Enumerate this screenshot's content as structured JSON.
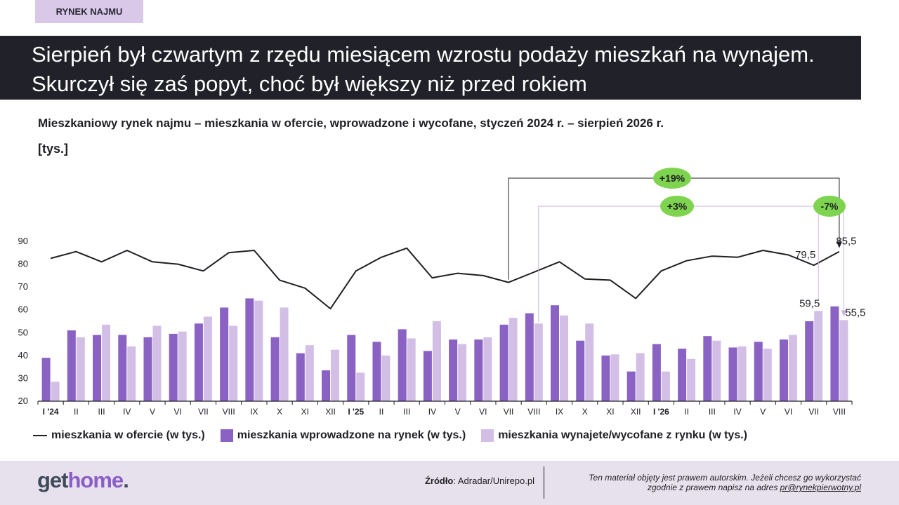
{
  "tag": "RYNEK NAJMU",
  "headline": "Sierpień był czwartym z rzędu miesiącem wzrostu podaży mieszkań na wynajem. Skurczył się zaś popyt, choć był większy niż przed rokiem",
  "subtitle": "Mieszkaniowy rynek najmu – mieszkania w ofercie, wprowadzone i wycofane, styczeń 2024 r. – sierpień 2026 r.",
  "unit": "[tys.]",
  "colors": {
    "line": "#1f1f24",
    "introduced": "#8a62c4",
    "withdrawn": "#d3bfe6",
    "badge": "#7ed44e",
    "connector_dark": "#1f1f24",
    "connector_light": "#c9b6de"
  },
  "chart_data": {
    "type": "bar",
    "categories": [
      "I '24",
      "II",
      "III",
      "IV",
      "V",
      "VI",
      "VII",
      "VIII",
      "IX",
      "X",
      "XI",
      "XII",
      "I '25",
      "II",
      "III",
      "IV",
      "V",
      "VI",
      "VII",
      "VIII",
      "IX",
      "X",
      "XI",
      "XII",
      "I '26",
      "II",
      "III",
      "IV",
      "V",
      "VI",
      "VII",
      "VIII"
    ],
    "bold_categories": [
      "I '24",
      "I '25",
      "I '26"
    ],
    "ylim": [
      20,
      90
    ],
    "yticks": [
      20,
      30,
      40,
      50,
      60,
      70,
      80,
      90
    ],
    "series": [
      {
        "name": "mieszkania w ofercie (w tys.)",
        "kind": "line",
        "values": [
          82.5,
          85.5,
          81,
          86,
          81,
          80,
          77,
          85,
          86,
          73,
          69.5,
          60.5,
          77,
          83,
          87,
          74,
          76,
          75,
          72,
          76.5,
          81,
          73.5,
          73,
          65,
          77,
          81.5,
          83.5,
          83,
          86,
          84,
          79.5,
          85.5
        ]
      },
      {
        "name": "mieszkania wprowadzone na rynek (w tys.)",
        "kind": "bar",
        "values": [
          39,
          51,
          49,
          49,
          48,
          49.5,
          54,
          61,
          65,
          48,
          41,
          33.5,
          49,
          46,
          51.5,
          42,
          47,
          47,
          53.5,
          58.5,
          62,
          46.5,
          40,
          33,
          45,
          43,
          48.5,
          43.5,
          46,
          47,
          55,
          61.5
        ]
      },
      {
        "name": "mieszkania wynajete/wycofane z rynku (w tys.)",
        "kind": "bar",
        "values": [
          28.5,
          48,
          53.5,
          44,
          53,
          50.5,
          57,
          53,
          64,
          61,
          44.5,
          42.5,
          32.5,
          40,
          47.5,
          55,
          45,
          48,
          56.5,
          54,
          57.5,
          54,
          40.5,
          41,
          33,
          38.5,
          46.5,
          44,
          43,
          49,
          59.5,
          55.5
        ]
      }
    ],
    "data_labels": {
      "line_jul": "79,5",
      "line_aug": "85,5",
      "withdrawn_jul": "59,5",
      "withdrawn_aug": "55,5"
    },
    "annotations": [
      {
        "text": "+19%"
      },
      {
        "text": "+3%"
      },
      {
        "text": "-7%"
      }
    ]
  },
  "footer": {
    "logo_part1": "get",
    "logo_part2": "home",
    "logo_part3": ".",
    "source_label": "Źródło",
    "source_value": ": Adradar/Unirepo.pl",
    "note_line1": "Ten materiał objęty jest prawem autorskim. Jeżeli chcesz go wykorzystać",
    "note_line2a": "zgodnie z prawem napisz na adres ",
    "note_line2b": "pr@rynekpierwotny.pl"
  }
}
